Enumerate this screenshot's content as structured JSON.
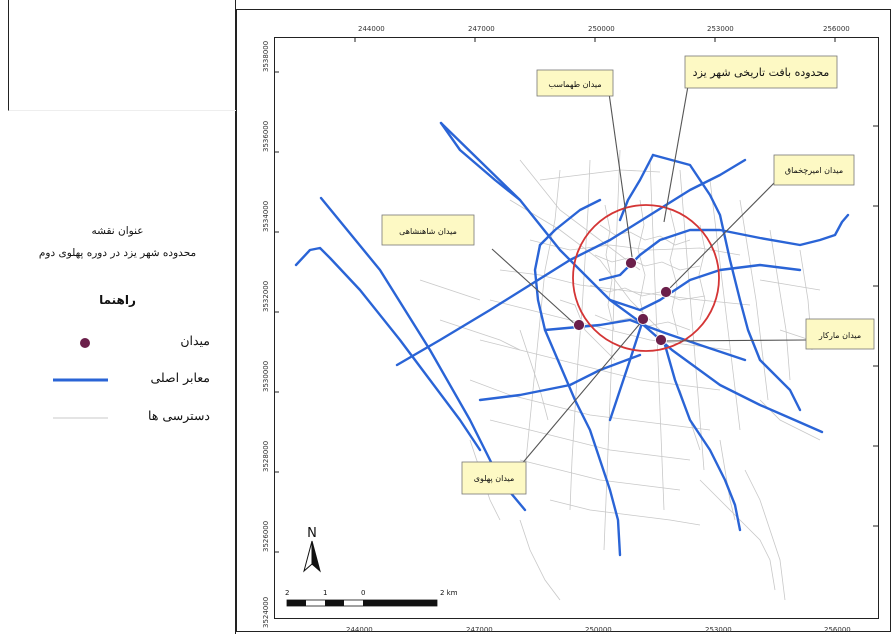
{
  "legend": {
    "map_title_caption": "عنوان نقشه",
    "map_title": "محدوده شهر یزد در دوره پهلوی دوم",
    "heading": "راهنما",
    "items": [
      {
        "label": "میدان",
        "symbol": "dot",
        "color": "#6b1f4a"
      },
      {
        "label": "معابر اصلی",
        "symbol": "line",
        "color": "#2a64d6"
      },
      {
        "label": "دسترسی ها",
        "symbol": "thin-line",
        "color": "#c8c8c8"
      }
    ]
  },
  "map": {
    "grid_x_labels": [
      "244000",
      "247000",
      "250000",
      "253000",
      "256000"
    ],
    "grid_y_labels": [
      "3538000",
      "3536000",
      "3534000",
      "3532000",
      "3530000",
      "3528000",
      "3526000",
      "3524000"
    ],
    "north_label": "N",
    "scale_bar_labels": [
      "2",
      "1",
      "0",
      "2 km"
    ],
    "colors": {
      "main_roads": "#2a64d6",
      "local_streets": "#c8c8c8",
      "historic_boundary": "#d43535",
      "squares": "#6b1f4a",
      "callout_fill": "#fdf9c4"
    },
    "callouts": [
      {
        "id": "historic",
        "text": "محدوده بافت تاریخی شهر یزد"
      },
      {
        "id": "tahmasb",
        "text": "میدان طهماسب"
      },
      {
        "id": "amir",
        "text": "میدان امیرچخماق"
      },
      {
        "id": "shahanshahi",
        "text": "میدان شاهنشاهی"
      },
      {
        "id": "markar",
        "text": "میدان مارکار"
      },
      {
        "id": "pahlavi",
        "text": "میدان پهلوی"
      }
    ]
  }
}
